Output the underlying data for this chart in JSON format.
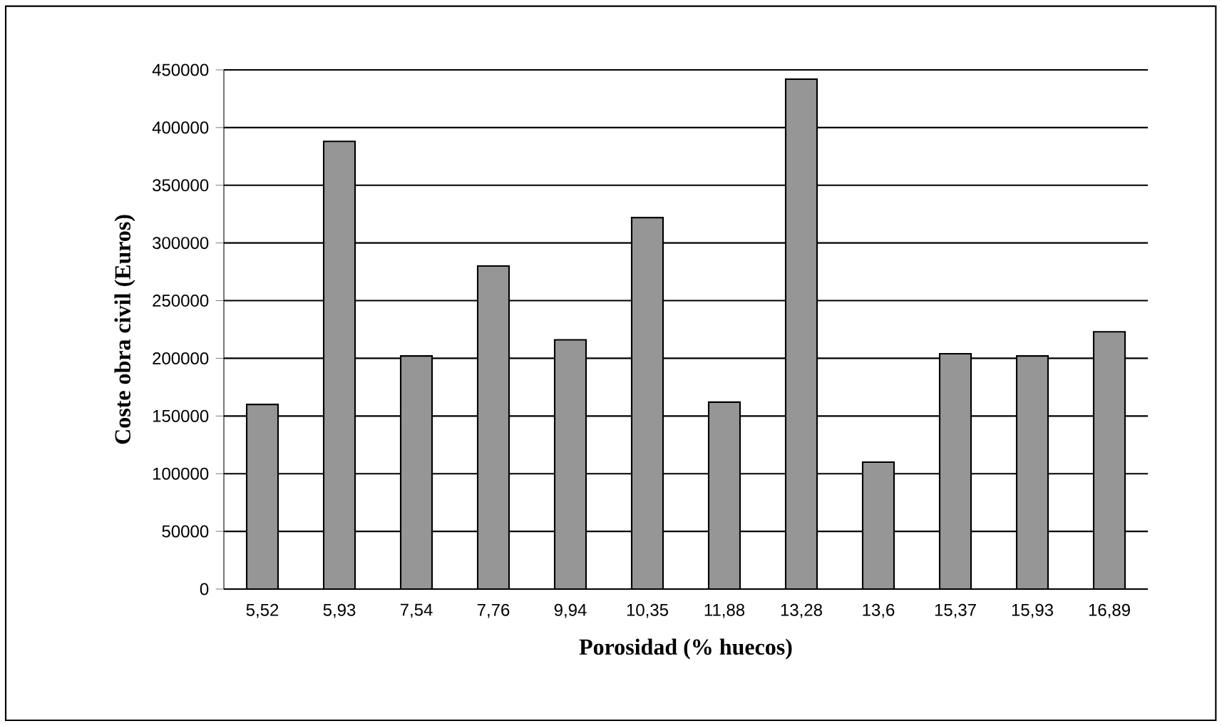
{
  "chart_data": {
    "type": "bar",
    "xlabel": "Porosidad (% huecos)",
    "ylabel": "Coste obra civil (Euros)",
    "categories": [
      "5,52",
      "5,93",
      "7,54",
      "7,76",
      "9,94",
      "10,35",
      "11,88",
      "13,28",
      "13,6",
      "15,37",
      "15,93",
      "16,89"
    ],
    "values": [
      160000,
      388000,
      202000,
      280000,
      216000,
      322000,
      162000,
      442000,
      110000,
      204000,
      202000,
      223000
    ],
    "color": "#969696",
    "ylim": [
      0,
      450000
    ],
    "yticks": [
      0,
      50000,
      100000,
      150000,
      200000,
      250000,
      300000,
      350000,
      400000,
      450000
    ],
    "grid": "y"
  }
}
